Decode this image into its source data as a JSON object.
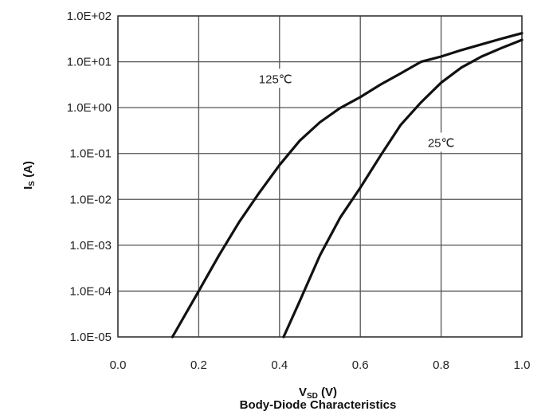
{
  "chart_data": {
    "type": "line",
    "title": "Body-Diode Characteristics",
    "xlabel": "V_SD (V)",
    "ylabel": "I_S (A)",
    "xlabel_main": "V",
    "xlabel_sub": "SD",
    "xlabel_unit": " (V)",
    "ylabel_main": "I",
    "ylabel_sub": "S",
    "ylabel_unit": " (A)",
    "xlim": [
      0,
      1.0
    ],
    "ylim": [
      1e-05,
      100
    ],
    "y_scale": "log",
    "grid": true,
    "x_ticks": [
      0.0,
      0.2,
      0.4,
      0.6,
      0.8,
      1.0
    ],
    "x_tick_labels": [
      "0.0",
      "0.2",
      "0.4",
      "0.6",
      "0.8",
      "1.0"
    ],
    "y_ticks": [
      1e-05,
      0.0001,
      0.001,
      0.01,
      0.1,
      1,
      10,
      100
    ],
    "y_tick_labels": [
      "1.0E-05",
      "1.0E-04",
      "1.0E-03",
      "1.0E-02",
      "1.0E-01",
      "1.0E+00",
      "1.0E+01",
      "1.0E+02"
    ],
    "series": [
      {
        "name": "125℃",
        "color": "#111111",
        "x": [
          0.135,
          0.2,
          0.25,
          0.3,
          0.35,
          0.4,
          0.45,
          0.5,
          0.55,
          0.6,
          0.65,
          0.7,
          0.75,
          0.8,
          0.85,
          0.9,
          0.95,
          1.0
        ],
        "y": [
          1e-05,
          0.0001,
          0.0006,
          0.0032,
          0.014,
          0.056,
          0.19,
          0.48,
          0.98,
          1.7,
          3.2,
          5.6,
          10,
          13,
          18,
          24,
          32,
          42
        ]
      },
      {
        "name": "25℃",
        "color": "#111111",
        "x": [
          0.41,
          0.45,
          0.5,
          0.55,
          0.6,
          0.65,
          0.7,
          0.75,
          0.8,
          0.85,
          0.9,
          0.95,
          1.0
        ],
        "y": [
          1e-05,
          6e-05,
          0.0006,
          0.004,
          0.018,
          0.09,
          0.42,
          1.3,
          3.5,
          7.5,
          13,
          20,
          30
        ]
      }
    ],
    "annotations": [
      "125℃",
      "25℃"
    ]
  }
}
